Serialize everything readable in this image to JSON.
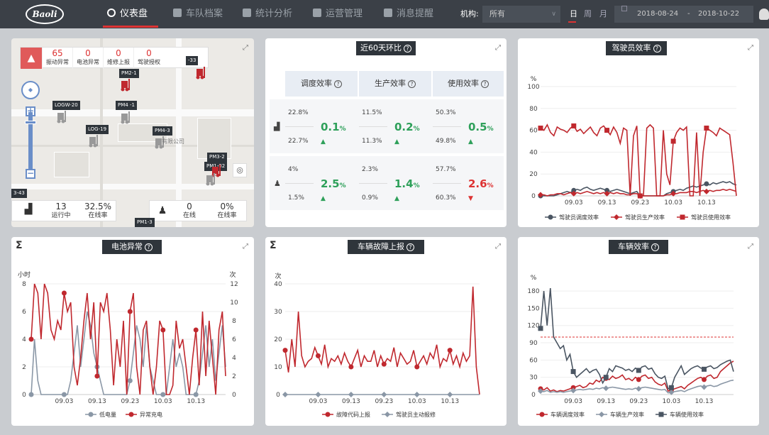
{
  "brand": "Baoli",
  "nav": [
    {
      "label": "仪表盘",
      "active": true
    },
    {
      "label": "车队档案"
    },
    {
      "label": "统计分析"
    },
    {
      "label": "运营管理"
    },
    {
      "label": "消息提醒"
    }
  ],
  "filter": {
    "org_label": "机构:",
    "org_value": "所有",
    "periods": [
      "日",
      "周",
      "月"
    ],
    "active_period": "日",
    "date_from": "2018-08-24",
    "date_sep": "-",
    "date_to": "2018-10-22"
  },
  "map": {
    "alarm_stats": [
      {
        "value": "65",
        "label": "振动异常"
      },
      {
        "value": "0",
        "label": "电池异常"
      },
      {
        "value": "0",
        "label": "维修上报"
      },
      {
        "value": "0",
        "label": "驾驶授权"
      }
    ],
    "vehicles": [
      "PM2-1",
      "LOGW-20",
      "PM4 -1",
      "LOG-19",
      "PM4-3",
      "PM3-2",
      "PM1-02",
      "3-43",
      "PM1-3",
      "-33"
    ],
    "place": "有限公司",
    "vehicle_stats": [
      {
        "value": "13",
        "label": "运行中"
      },
      {
        "value": "32.5%",
        "label": "在线率"
      }
    ],
    "driver_stats": [
      {
        "value": "0",
        "label": "在线"
      },
      {
        "value": "0%",
        "label": "在线率"
      }
    ]
  },
  "compare": {
    "title": "近60天环比",
    "headers": [
      "调度效率",
      "生产效率",
      "使用效率"
    ],
    "rows": [
      {
        "icon": "forklift-icon",
        "cells": [
          {
            "a": "22.8%",
            "b": "22.7%",
            "delta": "0.1",
            "unit": "%",
            "dir": "▲"
          },
          {
            "a": "11.5%",
            "b": "11.3%",
            "delta": "0.2",
            "unit": "%",
            "dir": "▲"
          },
          {
            "a": "50.3%",
            "b": "49.8%",
            "delta": "0.5",
            "unit": "%",
            "dir": "▲"
          }
        ]
      },
      {
        "icon": "driver-icon",
        "cells": [
          {
            "a": "4%",
            "b": "1.5%",
            "delta": "2.5",
            "unit": "%",
            "dir": "▲"
          },
          {
            "a": "2.3%",
            "b": "0.9%",
            "delta": "1.4",
            "unit": "%",
            "dir": "▲"
          },
          {
            "a": "57.7%",
            "b": "60.3%",
            "delta": "2.6",
            "unit": "%",
            "dir": "▼"
          }
        ]
      }
    ]
  },
  "colors": {
    "red": "#c0282e",
    "gray": "#8a97a6",
    "dark": "#4a5562",
    "green": "#2ea05a",
    "accent": "#dd3333"
  },
  "chart_data": [
    {
      "id": "driver",
      "title": "驾驶员效率",
      "type": "line",
      "ylabel": "%",
      "ylim": [
        0,
        100
      ],
      "yticks": [
        0,
        20,
        40,
        60,
        80,
        100
      ],
      "x_ticks": [
        "09.03",
        "09.13",
        "09.23",
        "10.03",
        "10.13"
      ],
      "x_range": [
        "2018-08-24",
        "2018-10-22"
      ],
      "series": [
        {
          "name": "驾驶员调度效率",
          "color": "#4a5562",
          "marker": "circle",
          "values": [
            0,
            0,
            0,
            0,
            0,
            1,
            2,
            3,
            4,
            3,
            5,
            6,
            5,
            7,
            8,
            6,
            5,
            6,
            7,
            6,
            5,
            4,
            5,
            6,
            5,
            4,
            3,
            2,
            3,
            4,
            0,
            0,
            0,
            0,
            0,
            0,
            0,
            0,
            2,
            3,
            4,
            5,
            6,
            5,
            7,
            8,
            9,
            8,
            9,
            10,
            11,
            10,
            12,
            11,
            12,
            13,
            12,
            13,
            11,
            10
          ]
        },
        {
          "name": "驾驶员生产效率",
          "color": "#c0282e",
          "marker": "diamond",
          "values": [
            1,
            1,
            0,
            1,
            1,
            2,
            2,
            1,
            2,
            3,
            2,
            3,
            2,
            3,
            4,
            3,
            2,
            3,
            2,
            3,
            2,
            3,
            2,
            3,
            2,
            2,
            1,
            1,
            2,
            2,
            0,
            0,
            0,
            0,
            0,
            0,
            0,
            0,
            1,
            1,
            2,
            2,
            3,
            3,
            3,
            4,
            4,
            3,
            4,
            5,
            4,
            5,
            4,
            5,
            5,
            6,
            5,
            6,
            5,
            4
          ]
        },
        {
          "name": "驾驶员使用效率",
          "color": "#c0282e",
          "marker": "square",
          "values": [
            62,
            60,
            65,
            58,
            55,
            63,
            61,
            60,
            58,
            62,
            64,
            59,
            61,
            57,
            60,
            63,
            58,
            55,
            62,
            64,
            60,
            56,
            63,
            58,
            48,
            62,
            60,
            0,
            55,
            64,
            0,
            0,
            62,
            65,
            62,
            0,
            0,
            60,
            20,
            10,
            50,
            58,
            62,
            60,
            63,
            0,
            0,
            58,
            0,
            40,
            62,
            60,
            58,
            55,
            62,
            60,
            58,
            56,
            30,
            0
          ]
        }
      ]
    },
    {
      "id": "battery",
      "title": "电池异常",
      "type": "line",
      "ylabel_left": "小时",
      "ylabel_right": "次",
      "ylim_left": [
        0,
        8
      ],
      "ylim_right": [
        0,
        12
      ],
      "yticks_left": [
        0,
        2,
        4,
        6,
        8
      ],
      "yticks_right": [
        0,
        2,
        4,
        6,
        8,
        10,
        12
      ],
      "x_ticks": [
        "09.03",
        "09.13",
        "09.23",
        "10.03",
        "10.13"
      ],
      "series": [
        {
          "name": "低电量",
          "axis": "left",
          "color": "#8a97a6",
          "marker": "circle",
          "values": [
            0,
            4,
            1,
            0,
            0,
            0,
            0,
            0,
            0,
            0,
            0,
            0,
            1,
            3,
            5,
            2,
            4,
            6,
            5,
            3,
            2,
            1,
            0,
            0,
            0,
            0,
            0,
            0,
            0,
            0,
            1,
            3,
            5,
            4,
            2,
            5,
            2,
            1,
            0,
            0,
            0,
            0,
            2,
            4,
            2,
            3,
            2,
            0,
            0,
            0,
            0,
            1,
            3,
            5,
            2,
            4,
            1,
            3,
            5,
            2
          ]
        },
        {
          "name": "异常充电",
          "axis": "right",
          "color": "#c0282e",
          "marker": "circle",
          "values": [
            6,
            12,
            11,
            6,
            12,
            11,
            7,
            6,
            8,
            7,
            11,
            9,
            10,
            3,
            1,
            4,
            8,
            11,
            6,
            10,
            2,
            10,
            9,
            11,
            7,
            1,
            6,
            3,
            8,
            0,
            9,
            11,
            3,
            0,
            7,
            8,
            3,
            0,
            3,
            8,
            7,
            0,
            0,
            1,
            8,
            5,
            6,
            3,
            0,
            4,
            7,
            1,
            9,
            2,
            8,
            4,
            0,
            7,
            9,
            2
          ]
        }
      ]
    },
    {
      "id": "fault",
      "title": "车辆故障上报",
      "type": "line",
      "ylabel": "次",
      "ylim": [
        0,
        40
      ],
      "yticks": [
        0,
        10,
        20,
        30,
        40
      ],
      "x_ticks": [
        "09.03",
        "09.13",
        "09.23",
        "10.03",
        "10.13"
      ],
      "series": [
        {
          "name": "故障代码上报",
          "color": "#c0282e",
          "marker": "circle",
          "values": [
            16,
            8,
            20,
            10,
            30,
            14,
            10,
            12,
            13,
            17,
            14,
            11,
            18,
            10,
            13,
            12,
            14,
            11,
            15,
            12,
            10,
            13,
            16,
            10,
            14,
            12,
            12,
            16,
            10,
            14,
            11,
            13,
            12,
            17,
            10,
            15,
            13,
            11,
            12,
            16,
            10,
            12,
            14,
            11,
            15,
            13,
            18,
            10,
            13,
            12,
            16,
            11,
            14,
            10,
            15,
            12,
            14,
            39,
            10,
            0
          ]
        },
        {
          "name": "驾驶员主动报修",
          "color": "#8a97a6",
          "marker": "diamond",
          "values": [
            0,
            0,
            0,
            0,
            0,
            0,
            0,
            0,
            0,
            0,
            0,
            0,
            0,
            0,
            0,
            0,
            0,
            0,
            0,
            0,
            0,
            0,
            0,
            0,
            0,
            0,
            0,
            0,
            0,
            0,
            0,
            0,
            0,
            0,
            0,
            0,
            0,
            0,
            0,
            0,
            0,
            0,
            0,
            0,
            0,
            0,
            0,
            0,
            0,
            0,
            0,
            0,
            0,
            0,
            0,
            0,
            0,
            0,
            0,
            0
          ]
        }
      ]
    },
    {
      "id": "vehicle",
      "title": "车辆效率",
      "type": "line",
      "ylabel": "%",
      "ylim": [
        0,
        190
      ],
      "yticks": [
        0,
        30,
        60,
        90,
        120,
        150,
        180
      ],
      "x_ticks": [
        "09.03",
        "09.13",
        "09.23",
        "10.03",
        "10.13"
      ],
      "reference_line": 100,
      "series": [
        {
          "name": "车辆调度效率",
          "color": "#c0282e",
          "marker": "circle",
          "values": [
            10,
            8,
            12,
            6,
            8,
            5,
            7,
            6,
            8,
            10,
            12,
            14,
            16,
            12,
            14,
            20,
            18,
            25,
            22,
            30,
            28,
            26,
            32,
            28,
            30,
            34,
            26,
            28,
            24,
            30,
            26,
            32,
            34,
            28,
            30,
            22,
            18,
            16,
            20,
            6,
            8,
            10,
            12,
            14,
            10,
            16,
            20,
            24,
            28,
            30,
            26,
            32,
            34,
            28,
            30,
            40,
            45,
            50,
            55,
            58
          ]
        },
        {
          "name": "车辆生产效率",
          "color": "#8a97a6",
          "marker": "diamond",
          "values": [
            6,
            5,
            7,
            4,
            5,
            4,
            5,
            4,
            5,
            6,
            7,
            8,
            9,
            8,
            9,
            10,
            9,
            11,
            10,
            12,
            11,
            12,
            13,
            12,
            11,
            10,
            9,
            10,
            9,
            11,
            10,
            12,
            13,
            12,
            11,
            10,
            9,
            8,
            9,
            3,
            4,
            5,
            6,
            7,
            5,
            8,
            10,
            12,
            14,
            15,
            13,
            15,
            16,
            14,
            15,
            18,
            20,
            22,
            24,
            25
          ]
        },
        {
          "name": "车辆使用效率",
          "color": "#4a5562",
          "marker": "square",
          "values": [
            115,
            180,
            120,
            185,
            100,
            90,
            80,
            85,
            60,
            70,
            40,
            30,
            35,
            40,
            45,
            38,
            42,
            44,
            35,
            20,
            30,
            45,
            40,
            50,
            48,
            46,
            42,
            44,
            40,
            46,
            42,
            48,
            50,
            44,
            46,
            36,
            30,
            28,
            32,
            10,
            12,
            30,
            40,
            50,
            35,
            40,
            45,
            48,
            50,
            46,
            44,
            48,
            50,
            45,
            47,
            52,
            55,
            58,
            60,
            40
          ]
        }
      ]
    }
  ]
}
